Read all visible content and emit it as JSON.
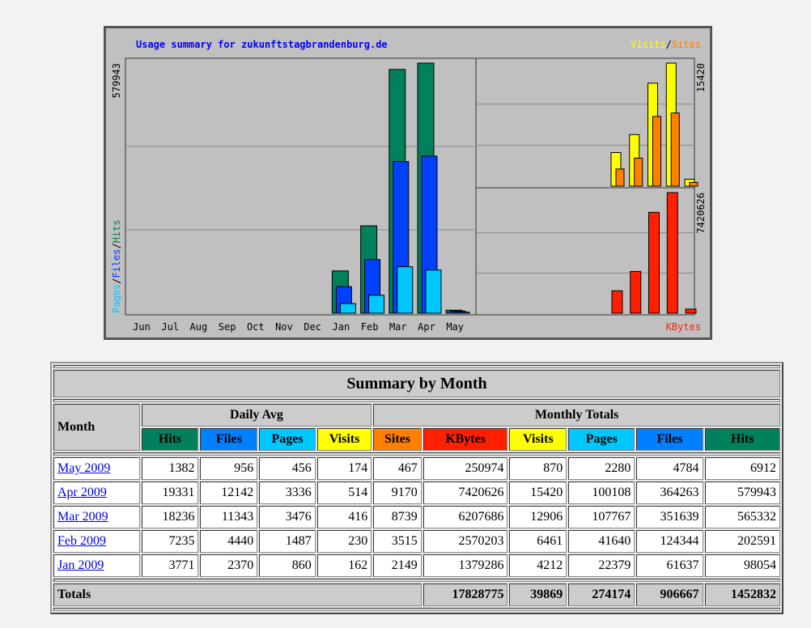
{
  "chart": {
    "title": "Usage summary for zukunftstagbrandenburg.de",
    "months": [
      "Jun",
      "Jul",
      "Aug",
      "Sep",
      "Oct",
      "Nov",
      "Dec",
      "Jan",
      "Feb",
      "Mar",
      "Apr",
      "May"
    ],
    "left_legend": [
      "Pages",
      "Files",
      "Hits"
    ],
    "right_legend": [
      "Visits",
      "Sites"
    ],
    "separator": "/",
    "kbytes_label": "KBytes",
    "hits_max": "579943",
    "visits_max": "15420",
    "kbytes_max": "7420626"
  },
  "table": {
    "title": "Summary by Month",
    "month_header": "Month",
    "groups": [
      "Daily Avg",
      "Monthly Totals"
    ],
    "columns": [
      "Hits",
      "Files",
      "Pages",
      "Visits",
      "Sites",
      "KBytes",
      "Visits",
      "Pages",
      "Files",
      "Hits"
    ],
    "rows": [
      [
        "May 2009",
        1382,
        956,
        456,
        174,
        467,
        250974,
        870,
        2280,
        4784,
        6912
      ],
      [
        "Apr 2009",
        19331,
        12142,
        3336,
        514,
        9170,
        7420626,
        15420,
        100108,
        364263,
        579943
      ],
      [
        "Mar 2009",
        18236,
        11343,
        3476,
        416,
        8739,
        6207686,
        12906,
        107767,
        351639,
        565332
      ],
      [
        "Feb 2009",
        7235,
        4440,
        1487,
        230,
        3515,
        2570203,
        6461,
        41640,
        124344,
        202591
      ],
      [
        "Jan 2009",
        3771,
        2370,
        860,
        162,
        2149,
        1379286,
        4212,
        22379,
        61637,
        98054
      ]
    ],
    "totals": {
      "label": "Totals",
      "values": [
        17828775,
        39869,
        274174,
        906667,
        1452832
      ]
    }
  }
}
